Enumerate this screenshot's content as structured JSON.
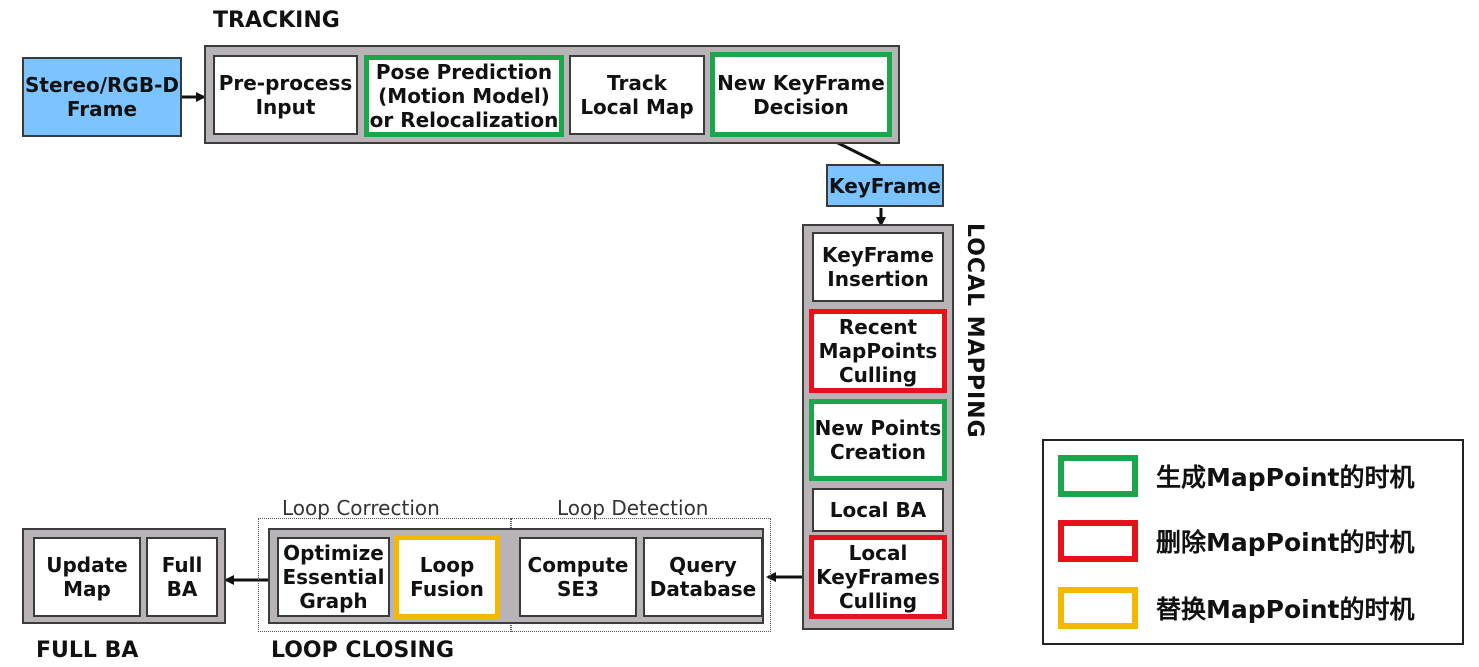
{
  "tracking": {
    "title": "TRACKING",
    "input": "Stereo/RGB-D\nFrame",
    "steps": {
      "preprocess": "Pre-process\nInput",
      "pose": "Pose Prediction\n(Motion Model)\nor Relocalization",
      "track": "Track\nLocal Map",
      "decision": "New KeyFrame\nDecision"
    }
  },
  "keyframe_label": "KeyFrame",
  "local_mapping": {
    "title": "LOCAL MAPPING",
    "steps": {
      "insertion": "KeyFrame\nInsertion",
      "recent_culling": "Recent\nMapPoints\nCulling",
      "new_points": "New Points\nCreation",
      "local_ba": "Local BA",
      "kf_culling": "Local\nKeyFrames\nCulling"
    }
  },
  "loop_closing": {
    "title": "LOOP CLOSING",
    "correction_label": "Loop Correction",
    "detection_label": "Loop Detection",
    "steps": {
      "optimize": "Optimize\nEssential\nGraph",
      "fusion": "Loop\nFusion",
      "se3": "Compute\nSE3",
      "query": "Query\nDatabase"
    }
  },
  "full_ba": {
    "title": "FULL BA",
    "steps": {
      "update": "Update\nMap",
      "full": "Full\nBA"
    }
  },
  "legend": {
    "items": [
      {
        "label": "生成MapPoint的时机",
        "color": "#1aa64a"
      },
      {
        "label": "删除MapPoint的时机",
        "color": "#e8101a"
      },
      {
        "label": "替换MapPoint的时机",
        "color": "#f5b800"
      }
    ]
  }
}
